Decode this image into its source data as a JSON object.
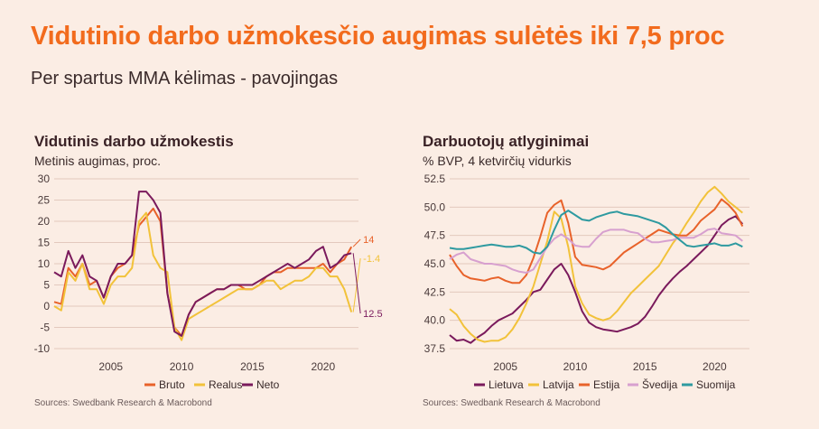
{
  "header": {
    "title": "Vidutinio darbo užmokesčio augimas sulėtės iki 7,5 proc",
    "subtitle": "Per spartus MMA kėlimas - pavojingas"
  },
  "colors": {
    "background": "#fbede4",
    "accent": "#f26b1d",
    "bruto": "#e8622a",
    "realus": "#f2c23a",
    "neto": "#7a1a5c",
    "lietuva": "#7a1a5c",
    "latvija": "#f2c23a",
    "estija": "#e8622a",
    "svedija": "#d7a0cf",
    "suomija": "#2e9aa0"
  },
  "chart_data": [
    {
      "type": "line",
      "title": "Vidutinis darbo užmokestis",
      "subtitle": "Metinis augimas, proc.",
      "source": "Sources: Swedbank Research & Macrobond",
      "xlim": [
        2001,
        2022.5
      ],
      "ylim": [
        -10,
        30
      ],
      "x_ticks": [
        "2005",
        "2010",
        "2015",
        "2020"
      ],
      "y_ticks": [
        "30",
        "25",
        "20",
        "15",
        "10",
        "5",
        "0",
        "-5",
        "-10"
      ],
      "grid": true,
      "legend_position": "bottom",
      "x": [
        2001,
        2001.5,
        2002,
        2002.5,
        2003,
        2003.5,
        2004,
        2004.5,
        2005,
        2005.5,
        2006,
        2006.5,
        2007,
        2007.5,
        2008,
        2008.5,
        2009,
        2009.5,
        2010,
        2010.5,
        2011,
        2011.5,
        2012,
        2012.5,
        2013,
        2013.5,
        2014,
        2014.5,
        2015,
        2015.5,
        2016,
        2016.5,
        2017,
        2017.5,
        2018,
        2018.5,
        2019,
        2019.5,
        2020,
        2020.5,
        2021,
        2021.5,
        2022
      ],
      "series": [
        {
          "name": "Bruto",
          "values": [
            1,
            0.5,
            9,
            7,
            10,
            5,
            6,
            2,
            7,
            9,
            10,
            12,
            19,
            21,
            23,
            20,
            3,
            -5,
            -7,
            -2,
            1,
            2,
            3,
            4,
            4,
            5,
            5,
            4,
            4,
            5,
            7,
            8,
            8,
            9,
            9,
            9,
            9,
            9,
            10,
            8,
            10,
            11,
            14
          ],
          "end_label": "14"
        },
        {
          "name": "Realus",
          "values": [
            0,
            -1,
            8,
            6,
            10,
            4,
            4,
            0.5,
            5,
            7,
            7,
            9,
            20,
            22,
            12,
            9,
            8,
            -5,
            -8,
            -3,
            -2,
            -1,
            0,
            1,
            2,
            3,
            4,
            4,
            4,
            5,
            6,
            6,
            4,
            5,
            6,
            6,
            7,
            9,
            9,
            7,
            7,
            4,
            -1.4
          ],
          "end_label": "-1.4"
        },
        {
          "name": "Neto",
          "values": [
            8,
            7,
            13,
            9,
            12,
            7,
            6,
            2,
            7,
            10,
            10,
            12,
            27,
            27,
            25,
            22,
            3,
            -6,
            -7,
            -2,
            1,
            2,
            3,
            4,
            4,
            5,
            5,
            5,
            5,
            6,
            7,
            8,
            9,
            10,
            9,
            10,
            11,
            13,
            14,
            9,
            10,
            12,
            12.5
          ],
          "end_label": "12.5"
        }
      ]
    },
    {
      "type": "line",
      "title": "Darbuotojų atlyginimai",
      "subtitle": "% BVP, 4 ketvirčių vidurkis",
      "source": "Sources: Swedbank Research & Macrobond",
      "xlim": [
        2001,
        2022.5
      ],
      "ylim": [
        37.5,
        52.5
      ],
      "x_ticks": [
        "2005",
        "2010",
        "2015",
        "2020"
      ],
      "y_ticks": [
        "52.5",
        "50.0",
        "47.5",
        "45.0",
        "42.5",
        "40.0",
        "37.5"
      ],
      "grid": true,
      "legend_position": "bottom",
      "x": [
        2001,
        2001.5,
        2002,
        2002.5,
        2003,
        2003.5,
        2004,
        2004.5,
        2005,
        2005.5,
        2006,
        2006.5,
        2007,
        2007.5,
        2008,
        2008.5,
        2009,
        2009.5,
        2010,
        2010.5,
        2011,
        2011.5,
        2012,
        2012.5,
        2013,
        2013.5,
        2014,
        2014.5,
        2015,
        2015.5,
        2016,
        2016.5,
        2017,
        2017.5,
        2018,
        2018.5,
        2019,
        2019.5,
        2020,
        2020.5,
        2021,
        2021.5,
        2022
      ],
      "series": [
        {
          "name": "Lietuva",
          "values": [
            38.7,
            38.2,
            38.3,
            38,
            38.5,
            38.9,
            39.5,
            40,
            40.3,
            40.6,
            41.2,
            41.8,
            42.5,
            42.7,
            43.6,
            44.5,
            45,
            44,
            42.5,
            40.8,
            39.8,
            39.4,
            39.2,
            39.1,
            39,
            39.2,
            39.4,
            39.7,
            40.3,
            41.2,
            42.2,
            43,
            43.7,
            44.3,
            44.8,
            45.4,
            46,
            46.6,
            47.5,
            48.4,
            48.9,
            49.2,
            48.5
          ]
        },
        {
          "name": "Latvija",
          "values": [
            41,
            40.5,
            39.5,
            38.8,
            38.3,
            38.1,
            38.2,
            38.2,
            38.5,
            39.2,
            40.2,
            41.5,
            43,
            45,
            47,
            49.6,
            49,
            46.5,
            43,
            41.5,
            40.5,
            40.2,
            40,
            40.2,
            40.8,
            41.6,
            42.4,
            43,
            43.6,
            44.2,
            44.8,
            45.8,
            46.8,
            47.6,
            48.6,
            49.5,
            50.5,
            51.3,
            51.8,
            51.2,
            50.5,
            50,
            49.5
          ]
        },
        {
          "name": "Estija",
          "values": [
            45.8,
            44.8,
            44,
            43.7,
            43.6,
            43.5,
            43.7,
            43.8,
            43.5,
            43.3,
            43.3,
            44,
            45.5,
            47.4,
            49.5,
            50.2,
            50.6,
            48.6,
            45.6,
            44.9,
            44.8,
            44.7,
            44.5,
            44.8,
            45.4,
            46,
            46.4,
            46.8,
            47.2,
            47.6,
            48,
            47.8,
            47.6,
            47.5,
            47.5,
            48,
            48.8,
            49.3,
            49.8,
            50.7,
            50.2,
            49.5,
            48.3
          ]
        },
        {
          "name": "Švedija",
          "values": [
            45.4,
            45.8,
            46,
            45.4,
            45.2,
            45,
            45,
            44.9,
            44.8,
            44.5,
            44.3,
            44.2,
            44.5,
            45.5,
            46.5,
            47.2,
            47.6,
            47.2,
            46.6,
            46.5,
            46.5,
            47.2,
            47.8,
            48,
            48,
            48,
            47.8,
            47.7,
            47.2,
            46.9,
            46.9,
            47,
            47.1,
            47.3,
            47.3,
            47.3,
            47.6,
            48,
            48.1,
            47.7,
            47.6,
            47.5,
            47
          ]
        },
        {
          "name": "Suomija",
          "values": [
            46.4,
            46.3,
            46.3,
            46.4,
            46.5,
            46.6,
            46.7,
            46.6,
            46.5,
            46.5,
            46.6,
            46.4,
            46,
            45.9,
            46.5,
            48,
            49.3,
            49.7,
            49.3,
            48.9,
            48.8,
            49.1,
            49.3,
            49.5,
            49.6,
            49.4,
            49.3,
            49.2,
            49,
            48.8,
            48.6,
            48.2,
            47.6,
            47.1,
            46.6,
            46.5,
            46.6,
            46.7,
            46.8,
            46.6,
            46.6,
            46.8,
            46.5
          ]
        }
      ]
    }
  ]
}
